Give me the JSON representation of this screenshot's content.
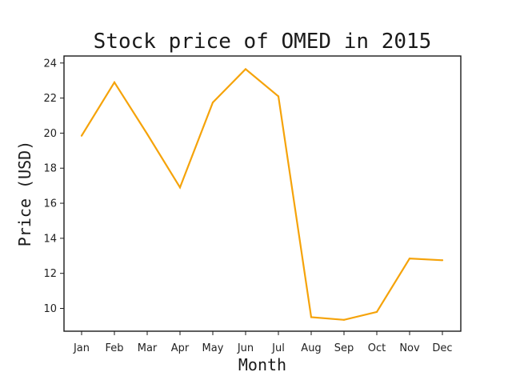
{
  "chart_data": {
    "type": "line",
    "title": "Stock price of OMED in 2015",
    "xlabel": "Month",
    "ylabel": "Price (USD)",
    "categories": [
      "Jan",
      "Feb",
      "Mar",
      "Apr",
      "May",
      "Jun",
      "Jul",
      "Aug",
      "Sep",
      "Oct",
      "Nov",
      "Dec"
    ],
    "series": [
      {
        "values": [
          19.85,
          22.9,
          19.95,
          16.9,
          21.75,
          23.65,
          22.1,
          9.5,
          9.35,
          9.8,
          12.85,
          12.75
        ],
        "color": "#f5a30a"
      }
    ],
    "yticks": [
      10,
      12,
      14,
      16,
      18,
      20,
      22,
      24
    ],
    "ylim": [
      8.7,
      24.4
    ],
    "grid": false,
    "legend": "none"
  }
}
